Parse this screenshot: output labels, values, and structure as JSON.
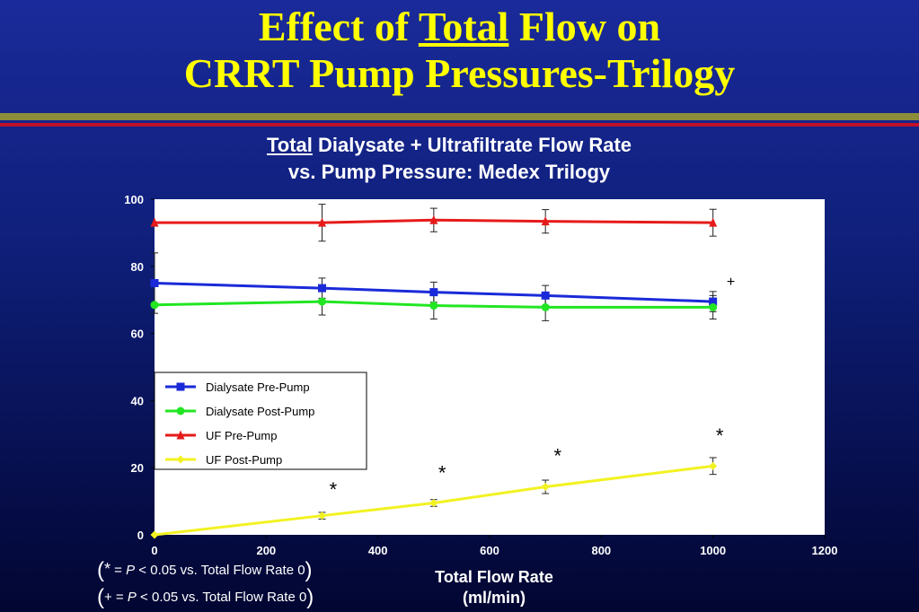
{
  "slide": {
    "title_pre": "Effect of ",
    "title_underlined": "Total",
    "title_post": " Flow on",
    "title_line2": "CRRT Pump Pressures-Trilogy"
  },
  "colors": {
    "title": "#ffff00",
    "olive_bar": "#8c8c3a",
    "red_bar": "#c0102a"
  },
  "chart_data": {
    "type": "line",
    "title_underlined": "Total",
    "title_rest": " Dialysate + Ultrafiltrate Flow Rate",
    "title_line2": "vs. Pump Pressure:  Medex Trilogy",
    "xlabel_line1": "Total Flow Rate",
    "xlabel_line2": "(ml/min)",
    "ylabel": "",
    "xlim": [
      0,
      1200
    ],
    "ylim": [
      0,
      100
    ],
    "x_ticks": [
      0,
      200,
      400,
      600,
      800,
      1000,
      1200
    ],
    "y_ticks": [
      0,
      20,
      40,
      60,
      80,
      100
    ],
    "grid": false,
    "legend_position": "lower-left",
    "series": [
      {
        "name": "Dialysate Pre-Pump",
        "color": "#1a2ad8",
        "marker": "square",
        "x": [
          0,
          300,
          500,
          700,
          1000
        ],
        "y": [
          75,
          73.5,
          72.3,
          71.3,
          69.5
        ],
        "err": [
          9,
          3,
          3,
          3,
          3
        ]
      },
      {
        "name": "Dialysate Post-Pump",
        "color": "#22e622",
        "marker": "circle",
        "x": [
          0,
          300,
          500,
          700,
          1000
        ],
        "y": [
          68.5,
          69.5,
          68.3,
          67.8,
          67.8
        ],
        "err": [
          0,
          4,
          4,
          4,
          3.5
        ]
      },
      {
        "name": "UF Pre-Pump",
        "color": "#e61a1a",
        "marker": "triangle",
        "x": [
          0,
          300,
          500,
          700,
          1000
        ],
        "y": [
          93,
          93,
          93.8,
          93.4,
          93
        ],
        "err": [
          0,
          5.5,
          3.5,
          3.5,
          4
        ]
      },
      {
        "name": "UF Post-Pump",
        "color": "#f2f222",
        "marker": "diamond",
        "x": [
          0,
          300,
          500,
          700,
          1000
        ],
        "y": [
          0,
          5.7,
          9.5,
          14.3,
          20.5
        ],
        "err": [
          0,
          1,
          1,
          2,
          2.5
        ]
      }
    ],
    "annotations": [
      {
        "text": "*",
        "x": 320,
        "y": 11.5
      },
      {
        "text": "*",
        "x": 515,
        "y": 16.5
      },
      {
        "text": "*",
        "x": 722,
        "y": 21.5
      },
      {
        "text": "*",
        "x": 1012,
        "y": 27.5
      },
      {
        "text": "+",
        "x": 1032,
        "y": 74
      }
    ]
  },
  "footnotes": [
    {
      "open": "(",
      "symbol": "*",
      "text_a": " = ",
      "p": "P",
      "text_b": " < 0.05 vs. Total Flow Rate 0",
      "close": ")"
    },
    {
      "open": "(",
      "symbol": "+",
      "text_a": " = ",
      "p": "P",
      "text_b": " < 0.05 vs. Total Flow Rate 0",
      "close": ")"
    }
  ]
}
